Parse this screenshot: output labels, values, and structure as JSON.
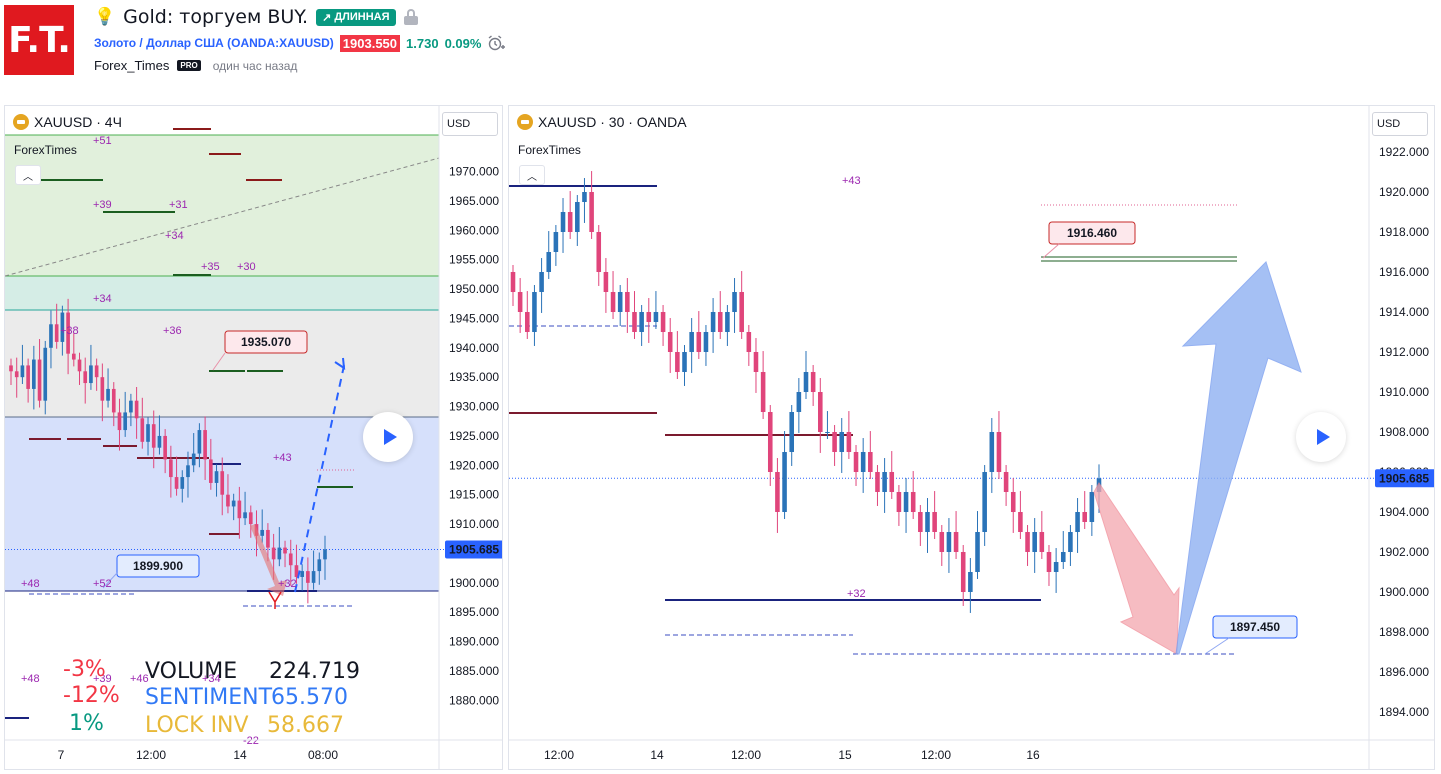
{
  "header": {
    "logo_text": "F.T.",
    "title": "Gold: торгуем BUY.",
    "badge": "ДЛИННАЯ",
    "badge_icon": "trend-up-arrow-icon",
    "symbol": "Золото / Доллар США (OANDA:XAUUSD)",
    "price": "1903.550",
    "change_abs": "1.730",
    "change_pct": "0.09%",
    "author": "Forex_Times",
    "pro_badge": "PRO",
    "time_ago": "один час назад",
    "colors": {
      "logo": "#e0191f",
      "badge": "#089981",
      "symbol": "#2962ff",
      "price_tag": "#f23645",
      "up": "#089981"
    }
  },
  "left_chart": {
    "header": "XAUUSD · 4Ч",
    "author": "ForexTimes",
    "currency": "USD",
    "price_label": "1905.685",
    "y_ticks": [
      "1970.000",
      "1965.000",
      "1960.000",
      "1955.000",
      "1950.000",
      "1945.000",
      "1940.000",
      "1935.000",
      "1930.000",
      "1925.000",
      "1920.000",
      "1915.000",
      "1910.000",
      "1905.000",
      "1900.000",
      "1895.000",
      "1890.000",
      "1885.000",
      "1880.000"
    ],
    "x_ticks": [
      "7",
      "12:00",
      "14",
      "08:00"
    ],
    "callouts": [
      "1935.070",
      "1899.900"
    ],
    "small_labels": [
      "+51",
      "+39",
      "+31",
      "+34",
      "+35",
      "+30",
      "+34",
      "+38",
      "+36",
      "+43",
      "+48",
      "+52",
      "+32",
      "+48",
      "+39",
      "+46",
      "+34",
      "-22"
    ],
    "stats": {
      "volume_pct": "-3%",
      "volume_label": "VOLUME",
      "volume_value": "224.719",
      "sentiment_pct": "-12%",
      "sentiment_label": "SENTIMENT",
      "sentiment_value": "65.570",
      "lock_pct": "1%",
      "lock_label": "LOCK INV",
      "lock_value": "58.667"
    },
    "chart_data": {
      "type": "candlestick",
      "ylim": [
        1877,
        1974
      ],
      "close": [
        1936,
        1935,
        1937,
        1933,
        1938,
        1931,
        1940,
        1944,
        1941,
        1946,
        1939,
        1938,
        1936,
        1934,
        1937,
        1935,
        1931,
        1933,
        1929,
        1926,
        1929,
        1931,
        1928,
        1924,
        1927,
        1923,
        1925,
        1921,
        1918,
        1916,
        1918,
        1920,
        1922,
        1926,
        1921,
        1917,
        1919,
        1915,
        1913,
        1914,
        1911,
        1912,
        1910,
        1908,
        1909,
        1906,
        1904,
        1906,
        1905,
        1903,
        1901,
        1902,
        1900,
        1902,
        1904,
        1905.685
      ]
    }
  },
  "right_chart": {
    "header": "XAUUSD · 30 · OANDA",
    "author": "ForexTimes",
    "currency": "USD",
    "price_label": "1905.685",
    "y_ticks": [
      "1922.000",
      "1920.000",
      "1918.000",
      "1916.000",
      "1914.000",
      "1912.000",
      "1910.000",
      "1908.000",
      "1906.000",
      "1904.000",
      "1902.000",
      "1900.000",
      "1898.000",
      "1896.000",
      "1894.000"
    ],
    "x_ticks": [
      "12:00",
      "14",
      "12:00",
      "15",
      "12:00",
      "16"
    ],
    "callouts": [
      "1916.460",
      "1897.450"
    ],
    "small_labels": [
      "+43",
      "+32"
    ],
    "chart_data": {
      "type": "candlestick",
      "ylim": [
        1893.3,
        1922.4
      ],
      "close": [
        1915,
        1914,
        1913,
        1915,
        1916,
        1917,
        1918,
        1919,
        1918,
        1919.5,
        1920,
        1918,
        1916,
        1915,
        1914,
        1915,
        1914,
        1913,
        1914,
        1913.5,
        1914,
        1913,
        1912,
        1911,
        1912,
        1913,
        1912,
        1913,
        1914,
        1913,
        1914,
        1915,
        1913,
        1912,
        1911,
        1909,
        1906,
        1904,
        1907,
        1909,
        1910,
        1911,
        1910,
        1908,
        1908,
        1907,
        1908,
        1907,
        1906,
        1907,
        1906,
        1905,
        1906,
        1905,
        1904,
        1905,
        1904,
        1903,
        1904,
        1903,
        1902,
        1903,
        1902,
        1900,
        1901,
        1903,
        1906,
        1908,
        1906,
        1905,
        1904,
        1903,
        1902,
        1903,
        1902,
        1901,
        1901.5,
        1902,
        1903,
        1904,
        1903.5,
        1905,
        1905.685
      ]
    }
  }
}
